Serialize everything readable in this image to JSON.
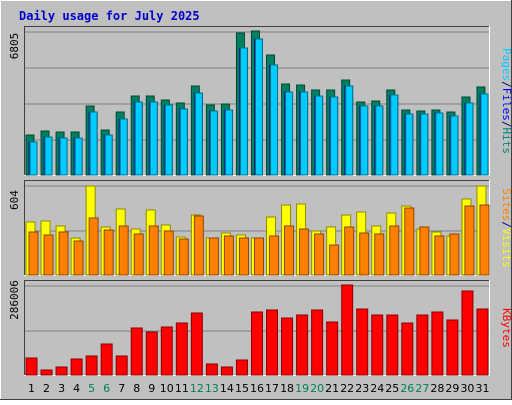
{
  "chart_data": {
    "type": "bar",
    "title": "Daily usage for July 2025",
    "categories": [
      "1",
      "2",
      "3",
      "4",
      "5",
      "6",
      "7",
      "8",
      "9",
      "10",
      "11",
      "12",
      "13",
      "14",
      "15",
      "16",
      "17",
      "18",
      "19",
      "20",
      "21",
      "22",
      "23",
      "24",
      "25",
      "26",
      "27",
      "28",
      "29",
      "30",
      "31"
    ],
    "weekend_days": [
      "5",
      "6",
      "12",
      "13",
      "19",
      "20",
      "26",
      "27"
    ],
    "panels": [
      {
        "id": "hits-files-pages",
        "max_label": "6805",
        "ymax": 6805,
        "side_labels": [
          {
            "text": "Pages",
            "color": "#00ccff"
          },
          {
            "text": "/",
            "color": "#000080"
          },
          {
            "text": "Files",
            "color": "#0000ff"
          },
          {
            "text": "/",
            "color": "#000080"
          },
          {
            "text": "Hits",
            "color": "#008080"
          }
        ],
        "series": [
          {
            "name": "Hits",
            "color": "#008060",
            "values": [
              1890,
              2090,
              2040,
              2010,
              3240,
              2110,
              2960,
              3710,
              3710,
              3530,
              3420,
              4200,
              3310,
              3370,
              6690,
              6805,
              5690,
              4310,
              4240,
              4010,
              4000,
              4470,
              3460,
              3490,
              4020,
              3070,
              3030,
              3090,
              2990,
              3690,
              4150
            ]
          },
          {
            "name": "Files",
            "color": "#0044ff",
            "values": [
              1580,
              1800,
              1750,
              1740,
              2980,
              1870,
              2660,
              3460,
              3460,
              3300,
              3110,
              3870,
              3040,
              3070,
              5990,
              6430,
              5190,
              3940,
              3920,
              3710,
              3690,
              4190,
              3270,
              3280,
              3770,
              2900,
              2890,
              2920,
              2810,
              3410,
              3830
            ]
          },
          {
            "name": "Pages",
            "color": "#00ccff",
            "values": [
              1580,
              1800,
              1750,
              1740,
              2980,
              1870,
              2660,
              3460,
              3460,
              3300,
              3110,
              3870,
              3040,
              3070,
              5990,
              6430,
              5190,
              3940,
              3920,
              3710,
              3690,
              4190,
              3270,
              3280,
              3770,
              2900,
              2890,
              2920,
              2810,
              3410,
              3830
            ]
          }
        ]
      },
      {
        "id": "visits-sites",
        "max_label": "604",
        "ymax": 604,
        "side_labels": [
          {
            "text": "Sites",
            "color": "#ff8000"
          },
          {
            "text": "/",
            "color": "#000080"
          },
          {
            "text": "Visits",
            "color": "#ffff00"
          }
        ],
        "series": [
          {
            "name": "Visits",
            "color": "#ffff00",
            "values": [
              355,
              365,
              330,
              250,
              600,
              325,
              440,
              310,
              435,
              335,
              255,
              405,
              250,
              280,
              270,
              250,
              390,
              470,
              475,
              295,
              320,
              400,
              425,
              330,
              415,
              460,
              310,
              290,
              260,
              510,
              600
            ]
          },
          {
            "name": "Sites",
            "color": "#ff8000",
            "values": [
              290,
              270,
              290,
              225,
              380,
              305,
              330,
              275,
              330,
              295,
              240,
              395,
              245,
              265,
              250,
              250,
              260,
              330,
              310,
              275,
              200,
              320,
              285,
              275,
              330,
              450,
              320,
              260,
              275,
              460,
              470
            ]
          }
        ]
      },
      {
        "id": "kbytes",
        "max_label": "286006",
        "ymax": 286006,
        "side_labels": [
          {
            "text": "KBytes",
            "color": "#ff0000"
          }
        ],
        "series": [
          {
            "name": "KBytes",
            "color": "#ff0000",
            "values": [
              53000,
              17000,
              27000,
              52000,
              59000,
              99000,
              59000,
              149000,
              137000,
              153000,
              164000,
              196000,
              36000,
              25000,
              47000,
              201000,
              207000,
              182000,
              191000,
              207000,
              167000,
              286006,
              211000,
              190000,
              190000,
              166000,
              191000,
              201000,
              175000,
              266000,
              211000
            ]
          }
        ]
      }
    ]
  }
}
